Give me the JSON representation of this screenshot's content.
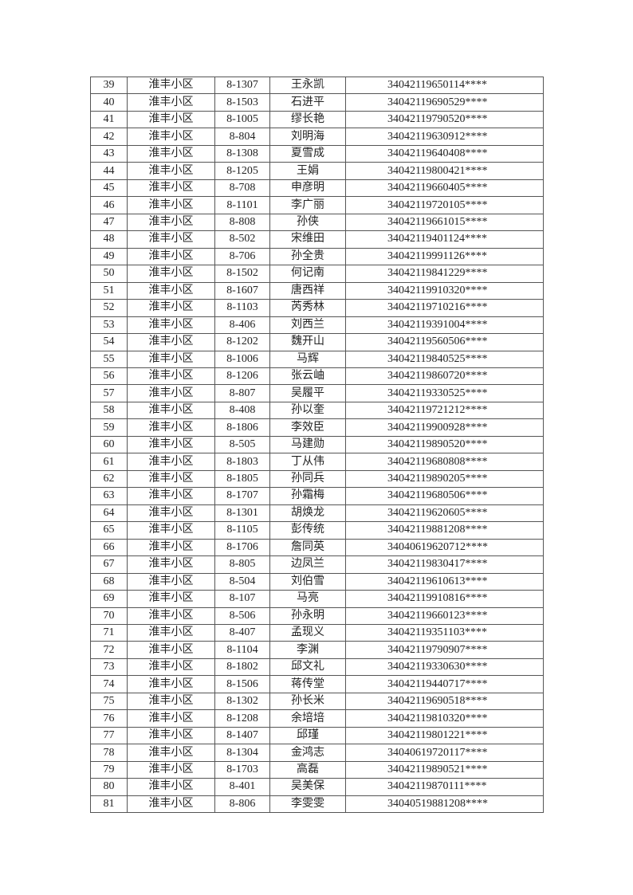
{
  "table": {
    "rows": [
      [
        "39",
        "淮丰小区",
        "8-1307",
        "王永凯",
        "34042119650114****"
      ],
      [
        "40",
        "淮丰小区",
        "8-1503",
        "石进平",
        "34042119690529****"
      ],
      [
        "41",
        "淮丰小区",
        "8-1005",
        "缪长艳",
        "34042119790520****"
      ],
      [
        "42",
        "淮丰小区",
        "8-804",
        "刘明海",
        "34042119630912****"
      ],
      [
        "43",
        "淮丰小区",
        "8-1308",
        "夏雪成",
        "34042119640408****"
      ],
      [
        "44",
        "淮丰小区",
        "8-1205",
        "王娟",
        "34042119800421****"
      ],
      [
        "45",
        "淮丰小区",
        "8-708",
        "申彦明",
        "34042119660405****"
      ],
      [
        "46",
        "淮丰小区",
        "8-1101",
        "李广丽",
        "34042119720105****"
      ],
      [
        "47",
        "淮丰小区",
        "8-808",
        "孙侠",
        "34042119661015****"
      ],
      [
        "48",
        "淮丰小区",
        "8-502",
        "宋维田",
        "34042119401124****"
      ],
      [
        "49",
        "淮丰小区",
        "8-706",
        "孙全贵",
        "34042119991126****"
      ],
      [
        "50",
        "淮丰小区",
        "8-1502",
        "何记南",
        "34042119841229****"
      ],
      [
        "51",
        "淮丰小区",
        "8-1607",
        "唐西祥",
        "34042119910320****"
      ],
      [
        "52",
        "淮丰小区",
        "8-1103",
        "芮秀林",
        "34042119710216****"
      ],
      [
        "53",
        "淮丰小区",
        "8-406",
        "刘西兰",
        "34042119391004****"
      ],
      [
        "54",
        "淮丰小区",
        "8-1202",
        "魏开山",
        "34042119560506****"
      ],
      [
        "55",
        "淮丰小区",
        "8-1006",
        "马辉",
        "34042119840525****"
      ],
      [
        "56",
        "淮丰小区",
        "8-1206",
        "张云岫",
        "34042119860720****"
      ],
      [
        "57",
        "淮丰小区",
        "8-807",
        "吴履平",
        "34042119330525****"
      ],
      [
        "58",
        "淮丰小区",
        "8-408",
        "孙以奎",
        "34042119721212****"
      ],
      [
        "59",
        "淮丰小区",
        "8-1806",
        "李效臣",
        "34042119900928****"
      ],
      [
        "60",
        "淮丰小区",
        "8-505",
        "马建勋",
        "34042119890520****"
      ],
      [
        "61",
        "淮丰小区",
        "8-1803",
        "丁从伟",
        "34042119680808****"
      ],
      [
        "62",
        "淮丰小区",
        "8-1805",
        "孙同兵",
        "34042119890205****"
      ],
      [
        "63",
        "淮丰小区",
        "8-1707",
        "孙霜梅",
        "34042119680506****"
      ],
      [
        "64",
        "淮丰小区",
        "8-1301",
        "胡焕龙",
        "34042119620605****"
      ],
      [
        "65",
        "淮丰小区",
        "8-1105",
        "彭传统",
        "34042119881208****"
      ],
      [
        "66",
        "淮丰小区",
        "8-1706",
        "詹同英",
        "34040619620712****"
      ],
      [
        "67",
        "淮丰小区",
        "8-805",
        "边凤兰",
        "34042119830417****"
      ],
      [
        "68",
        "淮丰小区",
        "8-504",
        "刘伯雪",
        "34042119610613****"
      ],
      [
        "69",
        "淮丰小区",
        "8-107",
        "马亮",
        "34042119910816****"
      ],
      [
        "70",
        "淮丰小区",
        "8-506",
        "孙永明",
        "34042119660123****"
      ],
      [
        "71",
        "淮丰小区",
        "8-407",
        "孟现义",
        "34042119351103****"
      ],
      [
        "72",
        "淮丰小区",
        "8-1104",
        "李渊",
        "34042119790907****"
      ],
      [
        "73",
        "淮丰小区",
        "8-1802",
        "邱文礼",
        "34042119330630****"
      ],
      [
        "74",
        "淮丰小区",
        "8-1506",
        "蒋传堂",
        "34042119440717****"
      ],
      [
        "75",
        "淮丰小区",
        "8-1302",
        "孙长米",
        "34042119690518****"
      ],
      [
        "76",
        "淮丰小区",
        "8-1208",
        "余培培",
        "34042119810320****"
      ],
      [
        "77",
        "淮丰小区",
        "8-1407",
        "邱瑾",
        "34042119801221****"
      ],
      [
        "78",
        "淮丰小区",
        "8-1304",
        "金鸿志",
        "34040619720117****"
      ],
      [
        "79",
        "淮丰小区",
        "8-1703",
        "高磊",
        "34042119890521****"
      ],
      [
        "80",
        "淮丰小区",
        "8-401",
        "吴美保",
        "34042119870111****"
      ],
      [
        "81",
        "淮丰小区",
        "8-806",
        "李雯雯",
        "34040519881208****"
      ]
    ]
  }
}
